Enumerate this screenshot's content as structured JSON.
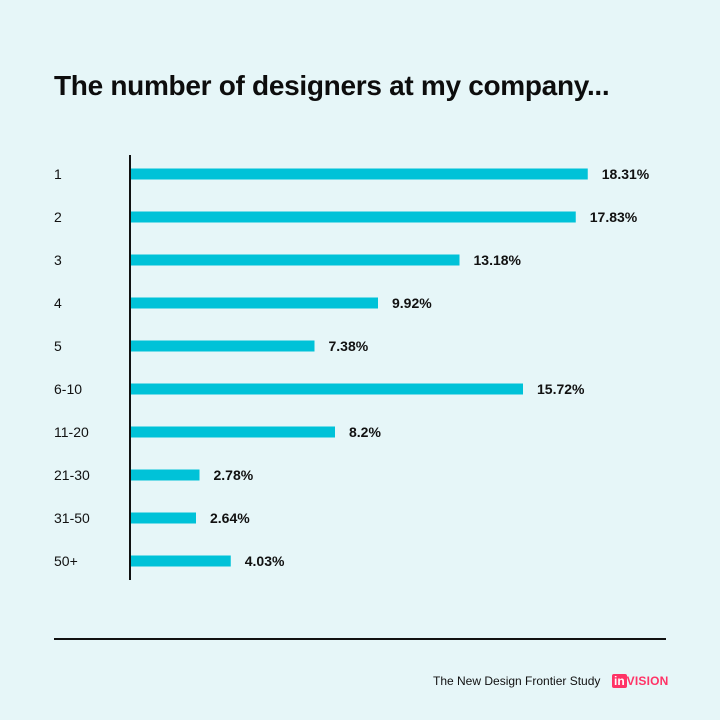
{
  "page": {
    "background": "#e6f6f8",
    "title": "The number of designers at my company...",
    "footer_text": "The New Design Frontier Study",
    "logo": {
      "mark": "in",
      "word": "VISION",
      "color": "#ff3366"
    }
  },
  "chart_data": {
    "type": "bar",
    "orientation": "horizontal",
    "title": "The number of designers at my company...",
    "categories": [
      "1",
      "2",
      "3",
      "4",
      "5",
      "6-10",
      "11-20",
      "21-30",
      "31-50",
      "50+"
    ],
    "values": [
      18.31,
      17.83,
      13.18,
      9.92,
      7.38,
      15.72,
      8.2,
      2.78,
      2.64,
      4.03
    ],
    "value_labels": [
      "18.31%",
      "17.83%",
      "13.18%",
      "9.92%",
      "7.38%",
      "15.72%",
      "8.2%",
      "2.78%",
      "2.64%",
      "4.03%"
    ],
    "unit": "%",
    "bar_color": "#00c2d8",
    "axis_color": "#111111",
    "grid": false,
    "legend": "none"
  }
}
